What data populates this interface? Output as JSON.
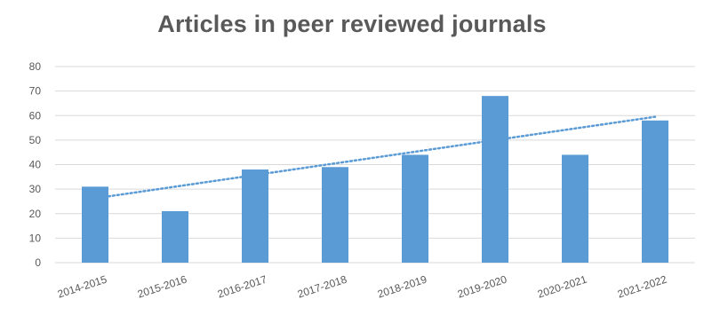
{
  "chart_data": {
    "type": "bar",
    "title": "Articles in peer reviewed journals",
    "categories": [
      "2014-2015",
      "2015-2016",
      "2016-2017",
      "2017-2018",
      "2018-2019",
      "2019-2020",
      "2020-2021",
      "2021-2022"
    ],
    "values": [
      31,
      21,
      38,
      39,
      44,
      68,
      44,
      58
    ],
    "ylim": [
      0,
      80
    ],
    "yticks": [
      0,
      10,
      20,
      30,
      40,
      50,
      60,
      70,
      80
    ],
    "grid": true,
    "trendline": {
      "type": "linear",
      "style": "dotted"
    },
    "colors": {
      "bar": "#5b9bd5",
      "trend": "#5b9bd5",
      "grid": "#d9d9d9",
      "text": "#595959"
    }
  }
}
